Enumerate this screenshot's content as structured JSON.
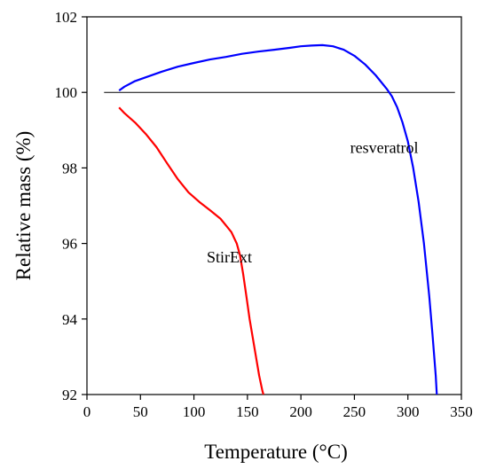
{
  "chart_data": {
    "type": "line",
    "xlabel": "Temperature (°C)",
    "ylabel": "Relative mass (%)",
    "xlim": [
      0,
      350
    ],
    "ylim": [
      92,
      102
    ],
    "x_ticks": [
      0,
      50,
      100,
      150,
      200,
      250,
      300,
      350
    ],
    "y_ticks": [
      92,
      94,
      96,
      98,
      100,
      102
    ],
    "x_tick_labels": [
      "0",
      "50",
      "100",
      "150",
      "200",
      "250",
      "300",
      "350"
    ],
    "y_tick_labels": [
      "92",
      "94",
      "96",
      "98",
      "100",
      "102"
    ],
    "grid": false,
    "legend": "none",
    "reference_line": {
      "y": 100,
      "x_start": 16,
      "x_end": 344,
      "color": "#000000"
    },
    "series": [
      {
        "color": "#0000ff",
        "x": [
          30,
          35,
          45,
          55,
          70,
          85,
          100,
          115,
          130,
          145,
          160,
          175,
          190,
          200,
          210,
          220,
          230,
          240,
          250,
          260,
          270,
          280,
          285,
          290,
          295,
          300,
          305,
          310,
          315,
          320,
          323,
          326,
          327
        ],
        "y": [
          100.05,
          100.15,
          100.3,
          100.4,
          100.55,
          100.68,
          100.78,
          100.87,
          100.94,
          101.02,
          101.08,
          101.13,
          101.18,
          101.22,
          101.24,
          101.25,
          101.22,
          101.13,
          100.97,
          100.74,
          100.45,
          100.1,
          99.9,
          99.6,
          99.2,
          98.7,
          98.0,
          97.1,
          96.0,
          94.6,
          93.6,
          92.5,
          92.0
        ]
      },
      {
        "color": "#ff0000",
        "x": [
          30,
          35,
          45,
          55,
          65,
          75,
          85,
          95,
          105,
          115,
          125,
          135,
          140,
          143,
          146,
          149,
          152,
          155,
          158,
          161,
          164,
          165
        ],
        "y": [
          99.6,
          99.45,
          99.2,
          98.9,
          98.55,
          98.12,
          97.7,
          97.35,
          97.1,
          96.88,
          96.65,
          96.3,
          96.0,
          95.7,
          95.2,
          94.6,
          94.0,
          93.5,
          93.0,
          92.5,
          92.1,
          92.0
        ]
      }
    ],
    "annotations": [
      {
        "text": "resveratrol",
        "x": 246,
        "y": 98.4
      },
      {
        "text": "StirExt",
        "x": 112,
        "y": 95.5
      }
    ]
  }
}
